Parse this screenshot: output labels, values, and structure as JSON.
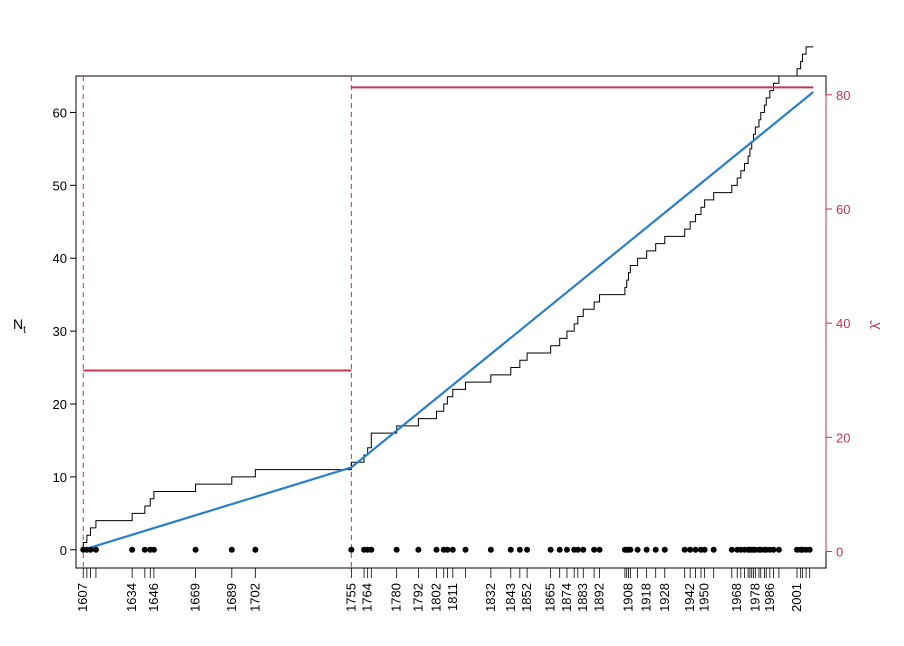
{
  "chart_data": {
    "type": "line",
    "title": "",
    "xlabel": "",
    "ylabel": "N",
    "ylabel_subscript": "t",
    "y2label": "λ̂",
    "xlim": [
      1603,
      2017
    ],
    "ylim": [
      -2.5,
      65
    ],
    "y2lim": [
      -2.9,
      83.3
    ],
    "y_ticks": [
      0,
      10,
      20,
      30,
      40,
      50,
      60
    ],
    "y2_ticks": [
      0,
      20,
      40,
      60,
      80
    ],
    "x_tick_labels": [
      1607,
      1634,
      1646,
      1669,
      1689,
      1702,
      1755,
      1764,
      1780,
      1792,
      1802,
      1811,
      1832,
      1843,
      1852,
      1865,
      1874,
      1883,
      1892,
      1908,
      1918,
      1928,
      1942,
      1950,
      1968,
      1978,
      1986,
      2001
    ],
    "grid": false,
    "colors": {
      "counting_process": "#000000",
      "fitted_mean": "#2a7fc9",
      "rate": "#c8334f",
      "changepoint": "#c8334f"
    },
    "event_years": [
      1607,
      1609,
      1611,
      1614,
      1634,
      1641,
      1644,
      1646,
      1669,
      1689,
      1702,
      1755,
      1762,
      1764,
      1766,
      1780,
      1792,
      1802,
      1806,
      1808,
      1811,
      1818,
      1832,
      1843,
      1848,
      1852,
      1865,
      1870,
      1874,
      1878,
      1880,
      1883,
      1889,
      1892,
      1906,
      1907,
      1908,
      1909,
      1913,
      1918,
      1923,
      1928,
      1939,
      1942,
      1945,
      1948,
      1950,
      1955,
      1965,
      1968,
      1970,
      1972,
      1974,
      1975,
      1976,
      1977,
      1978,
      1980,
      1981,
      1983,
      1984,
      1986,
      1988,
      1991,
      2001,
      2003,
      2004,
      2006,
      2008
    ],
    "changepoints": [
      1607,
      1755
    ],
    "series": [
      {
        "name": "",
        "kind": "step",
        "color": "counting_process",
        "axis": "left",
        "x": [
          1607,
          1609,
          1611,
          1614,
          1634,
          1641,
          1644,
          1646,
          1669,
          1689,
          1702,
          1755,
          1762,
          1764,
          1766,
          1780,
          1792,
          1802,
          1806,
          1808,
          1811,
          1818,
          1832,
          1843,
          1848,
          1852,
          1865,
          1870,
          1874,
          1878,
          1880,
          1883,
          1889,
          1892,
          1906,
          1907,
          1908,
          1909,
          1913,
          1918,
          1923,
          1928,
          1939,
          1942,
          1945,
          1948,
          1950,
          1955,
          1965,
          1968,
          1970,
          1972,
          1974,
          1975,
          1976,
          1977,
          1978,
          1980,
          1981,
          1983,
          1984,
          1986,
          1988,
          1991,
          2001,
          2003,
          2004,
          2006,
          2008,
          2010
        ],
        "y": [
          1,
          2,
          3,
          4,
          5,
          6,
          7,
          8,
          9,
          10,
          11,
          12,
          13,
          14,
          16,
          17,
          18,
          19,
          20,
          21,
          22,
          23,
          24,
          25,
          26,
          27,
          28,
          29,
          30,
          31,
          32,
          33,
          34,
          35,
          36,
          37,
          38,
          39,
          40,
          41,
          42,
          43,
          44,
          45,
          46,
          47,
          48,
          49,
          50,
          51,
          52,
          53,
          54,
          55,
          56,
          57,
          58,
          59,
          60,
          61,
          62,
          63,
          64,
          65,
          66,
          67,
          68,
          69,
          69,
          69
        ]
      },
      {
        "name": "",
        "kind": "line",
        "color": "fitted_mean",
        "axis": "left",
        "x": [
          1607,
          1755,
          2010
        ],
        "y": [
          0,
          11.3,
          62.8
        ]
      },
      {
        "name": "",
        "kind": "line",
        "color": "rate",
        "axis": "right",
        "x": [
          1607,
          1755,
          1755,
          2010
        ],
        "y": [
          31.7,
          31.7,
          81.3,
          81.3
        ]
      }
    ]
  }
}
